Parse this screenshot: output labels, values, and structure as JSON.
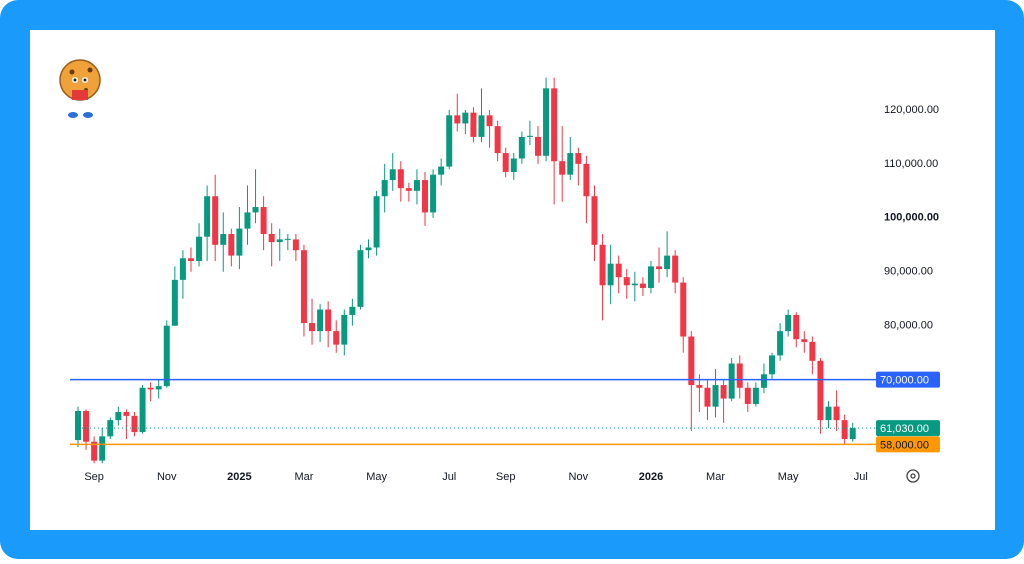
{
  "chart_data": {
    "type": "candlestick",
    "categories": [
      null,
      null,
      "Sep",
      null,
      null,
      null,
      null,
      null,
      null,
      null,
      null,
      "Nov",
      null,
      null,
      null,
      null,
      null,
      null,
      null,
      null,
      "2025",
      null,
      null,
      null,
      null,
      null,
      null,
      null,
      "Mar",
      null,
      null,
      null,
      null,
      null,
      null,
      null,
      null,
      "May",
      null,
      null,
      null,
      null,
      null,
      null,
      null,
      null,
      "Jul",
      null,
      null,
      null,
      null,
      null,
      null,
      "Sep",
      null,
      null,
      null,
      null,
      null,
      null,
      null,
      null,
      "Nov",
      null,
      null,
      null,
      null,
      null,
      null,
      null,
      null,
      "2026",
      null,
      null,
      null,
      null,
      null,
      null,
      null,
      "Mar",
      null,
      null,
      null,
      null,
      null,
      null,
      null,
      null,
      "May",
      null,
      null,
      null,
      null,
      null,
      null,
      null,
      null,
      "Jul"
    ],
    "open": [
      58800,
      64200,
      58500,
      55000,
      59500,
      62500,
      64000,
      63300,
      60300,
      68500,
      68200,
      68800,
      80000,
      88500,
      92500,
      92000,
      96500,
      104000,
      95000,
      97000,
      93000,
      98000,
      101000,
      102000,
      97000,
      95500,
      96000,
      96000,
      94000,
      80500,
      79000,
      83000,
      79000,
      76500,
      82000,
      83500,
      94000,
      94500,
      104000,
      107000,
      109000,
      105500,
      105000,
      107000,
      101000,
      108000,
      109500,
      119000,
      117500,
      119500,
      115000,
      119000,
      117000,
      112000,
      108500,
      111000,
      115000,
      115000,
      111500,
      124000,
      110500,
      108000,
      112000,
      110000,
      104000,
      95000,
      87500,
      91500,
      89000,
      87500,
      87800,
      87000,
      91000,
      90500,
      93000,
      88000,
      78000,
      69000,
      68500,
      65000,
      69000,
      66500,
      73000,
      68500,
      65500,
      68500,
      71000,
      74500,
      79000,
      82000,
      77500,
      77000,
      73500,
      62500,
      65000,
      62500,
      59000,
      null
    ],
    "high": [
      65000,
      64500,
      59500,
      61000,
      63000,
      65000,
      64500,
      64000,
      69000,
      69500,
      70000,
      81000,
      91000,
      94000,
      94500,
      99000,
      106000,
      108000,
      101000,
      98000,
      102000,
      106000,
      109000,
      104000,
      99000,
      98000,
      97000,
      97000,
      95000,
      85000,
      84000,
      84500,
      81000,
      83000,
      85000,
      95000,
      96000,
      105000,
      110000,
      112000,
      110500,
      106500,
      109000,
      108500,
      109000,
      111000,
      120000,
      123000,
      120000,
      120500,
      124000,
      120000,
      118000,
      113000,
      112000,
      116000,
      118000,
      117000,
      126000,
      126000,
      117000,
      115000,
      113000,
      111500,
      106000,
      97000,
      95000,
      93000,
      90500,
      90000,
      89000,
      92000,
      94500,
      97500,
      94000,
      89000,
      79000,
      71000,
      70000,
      72000,
      70000,
      74000,
      74500,
      69500,
      69500,
      73000,
      75000,
      80500,
      83000,
      82500,
      79000,
      78000,
      74000,
      66000,
      68000,
      63500,
      62000,
      null
    ],
    "low": [
      57500,
      57000,
      54500,
      54500,
      59000,
      61500,
      59000,
      59500,
      60000,
      66000,
      66500,
      68500,
      80000,
      85000,
      90000,
      91000,
      92000,
      92000,
      90000,
      91000,
      90500,
      95000,
      99000,
      94000,
      91000,
      92000,
      94000,
      92000,
      78000,
      76500,
      77000,
      76000,
      75000,
      74500,
      80000,
      83000,
      92500,
      93000,
      101000,
      105000,
      103000,
      103000,
      102500,
      98500,
      100000,
      106000,
      109000,
      116000,
      115500,
      114000,
      114000,
      113000,
      110500,
      107500,
      107000,
      110000,
      113500,
      110000,
      110500,
      102500,
      103000,
      107000,
      106000,
      99000,
      92000,
      81000,
      84000,
      86000,
      85000,
      84500,
      85500,
      86000,
      88000,
      89000,
      86000,
      75000,
      60500,
      64000,
      62500,
      63000,
      62000,
      66000,
      66500,
      64000,
      65000,
      67500,
      70000,
      73500,
      78000,
      76000,
      75000,
      71000,
      60000,
      61000,
      60500,
      58000,
      58500,
      null
    ],
    "close": [
      64200,
      58500,
      55000,
      59500,
      62500,
      64000,
      63300,
      60300,
      68500,
      68200,
      68800,
      80000,
      88500,
      92500,
      92000,
      96500,
      104000,
      95000,
      97000,
      93000,
      98000,
      101000,
      102000,
      97000,
      95500,
      96000,
      96100,
      94000,
      80500,
      79000,
      83000,
      79000,
      76500,
      82000,
      83500,
      94000,
      94500,
      104000,
      107000,
      109000,
      105500,
      105000,
      107000,
      101000,
      108000,
      109500,
      119000,
      117500,
      119500,
      115000,
      119000,
      117000,
      112000,
      108500,
      111000,
      115000,
      115200,
      111500,
      124000,
      110500,
      108000,
      112000,
      110000,
      104000,
      95000,
      87500,
      91500,
      89000,
      87500,
      87800,
      87000,
      91000,
      90500,
      93000,
      88000,
      78000,
      69000,
      68500,
      65000,
      69000,
      66500,
      73000,
      68500,
      65500,
      68500,
      71000,
      74500,
      79000,
      82000,
      77500,
      77000,
      73500,
      62500,
      65000,
      62500,
      59000,
      61030,
      null
    ],
    "up_color": "#089981",
    "down_color": "#f23645",
    "ylim": [
      54000,
      135000
    ],
    "yticks": [
      {
        "value": 120000,
        "label": "120,000.00"
      },
      {
        "value": 110000,
        "label": "110,000.00"
      },
      {
        "value": 100000,
        "label": "100,000.00",
        "bold": true
      },
      {
        "value": 90000,
        "label": "90,000.00"
      },
      {
        "value": 80000,
        "label": "80,000.00"
      }
    ],
    "hlines": [
      {
        "value": 70000,
        "label": "70,000.00",
        "color": "#2962ff"
      },
      {
        "value": 58000,
        "label": "58,000.00",
        "color": "#ff9800"
      }
    ],
    "last_price_label": "61,030.00"
  }
}
